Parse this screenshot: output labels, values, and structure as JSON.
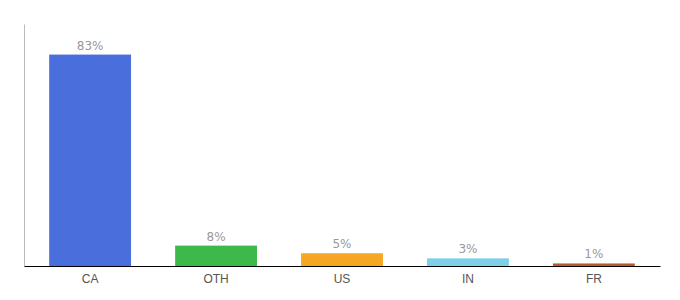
{
  "chart_data": {
    "type": "bar",
    "categories": [
      "CA",
      "OTH",
      "US",
      "IN",
      "FR"
    ],
    "values": [
      83,
      8,
      5,
      3,
      1
    ],
    "value_labels": [
      "83%",
      "8%",
      "5%",
      "3%",
      "1%"
    ],
    "data_labels": true,
    "colors": [
      "#4a6fdc",
      "#3db84a",
      "#f5a623",
      "#7ecfe8",
      "#b85c2a"
    ],
    "ylim": [
      0,
      95
    ],
    "tick_labels": "x"
  }
}
